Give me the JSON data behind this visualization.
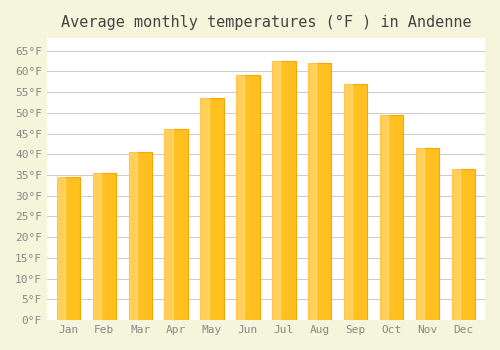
{
  "title": "Average monthly temperatures (°F ) in Andenne",
  "months": [
    "Jan",
    "Feb",
    "Mar",
    "Apr",
    "May",
    "Jun",
    "Jul",
    "Aug",
    "Sep",
    "Oct",
    "Nov",
    "Dec"
  ],
  "values": [
    34.5,
    35.5,
    40.5,
    46.0,
    53.5,
    59.0,
    62.5,
    62.0,
    57.0,
    49.5,
    41.5,
    36.5
  ],
  "bar_color_face": "#FFC020",
  "bar_color_edge": "#FFA500",
  "background_color": "#F5F5DC",
  "plot_bg_color": "#FFFFFF",
  "grid_color": "#CCCCCC",
  "ylim": [
    0,
    68
  ],
  "ytick_step": 5,
  "title_fontsize": 11,
  "tick_fontsize": 8,
  "tick_font_family": "monospace"
}
